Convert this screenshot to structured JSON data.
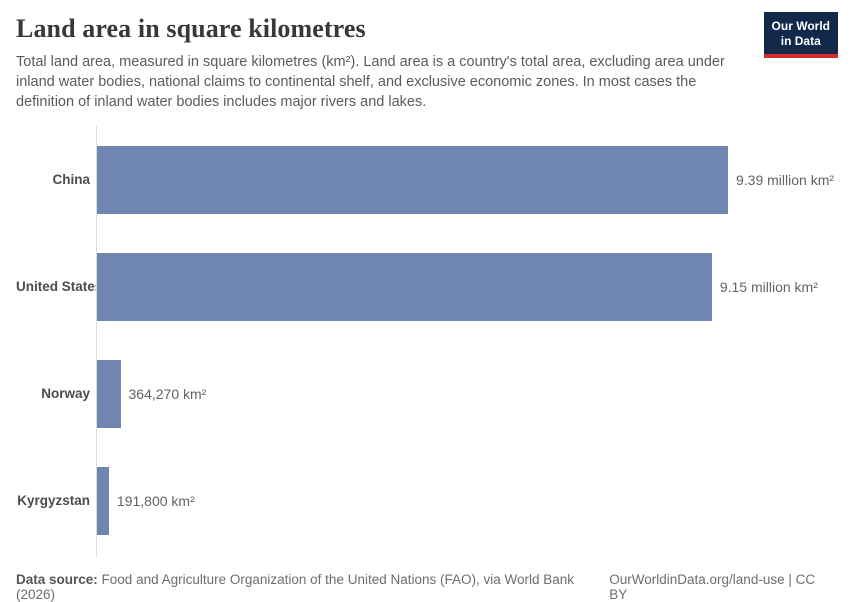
{
  "header": {
    "title": "Land area in square kilometres",
    "subtitle": "Total land area, measured in square kilometres (km²). Land area is a country's total area, excluding area under inland water bodies, national claims to continental shelf, and exclusive economic zones. In most cases the definition of inland water bodies includes major rivers and lakes."
  },
  "logo": {
    "line1": "Our World",
    "line2": "in Data",
    "bg_color": "#12294b",
    "accent_color": "#d32b2e"
  },
  "chart_data": {
    "type": "bar",
    "orientation": "horizontal",
    "title": "Land area in square kilometres",
    "categories": [
      "China",
      "United States",
      "Norway",
      "Kyrgyzstan"
    ],
    "values": [
      9390000,
      9150000,
      364270,
      191800
    ],
    "value_labels": [
      "9.39 million km²",
      "9.15 million km²",
      "364,270 km²",
      "191,800 km²"
    ],
    "unit": "km²",
    "xlim": [
      0,
      9390000
    ],
    "bar_color": "#6e86b0",
    "axis_color": "#dedede",
    "grid": false,
    "legend": "none"
  },
  "footer": {
    "source_label": "Data source:",
    "source_text": "Food and Agriculture Organization of the United Nations (FAO), via World Bank (2026)",
    "link_text": "OurWorldinData.org/land-use | CC BY"
  }
}
